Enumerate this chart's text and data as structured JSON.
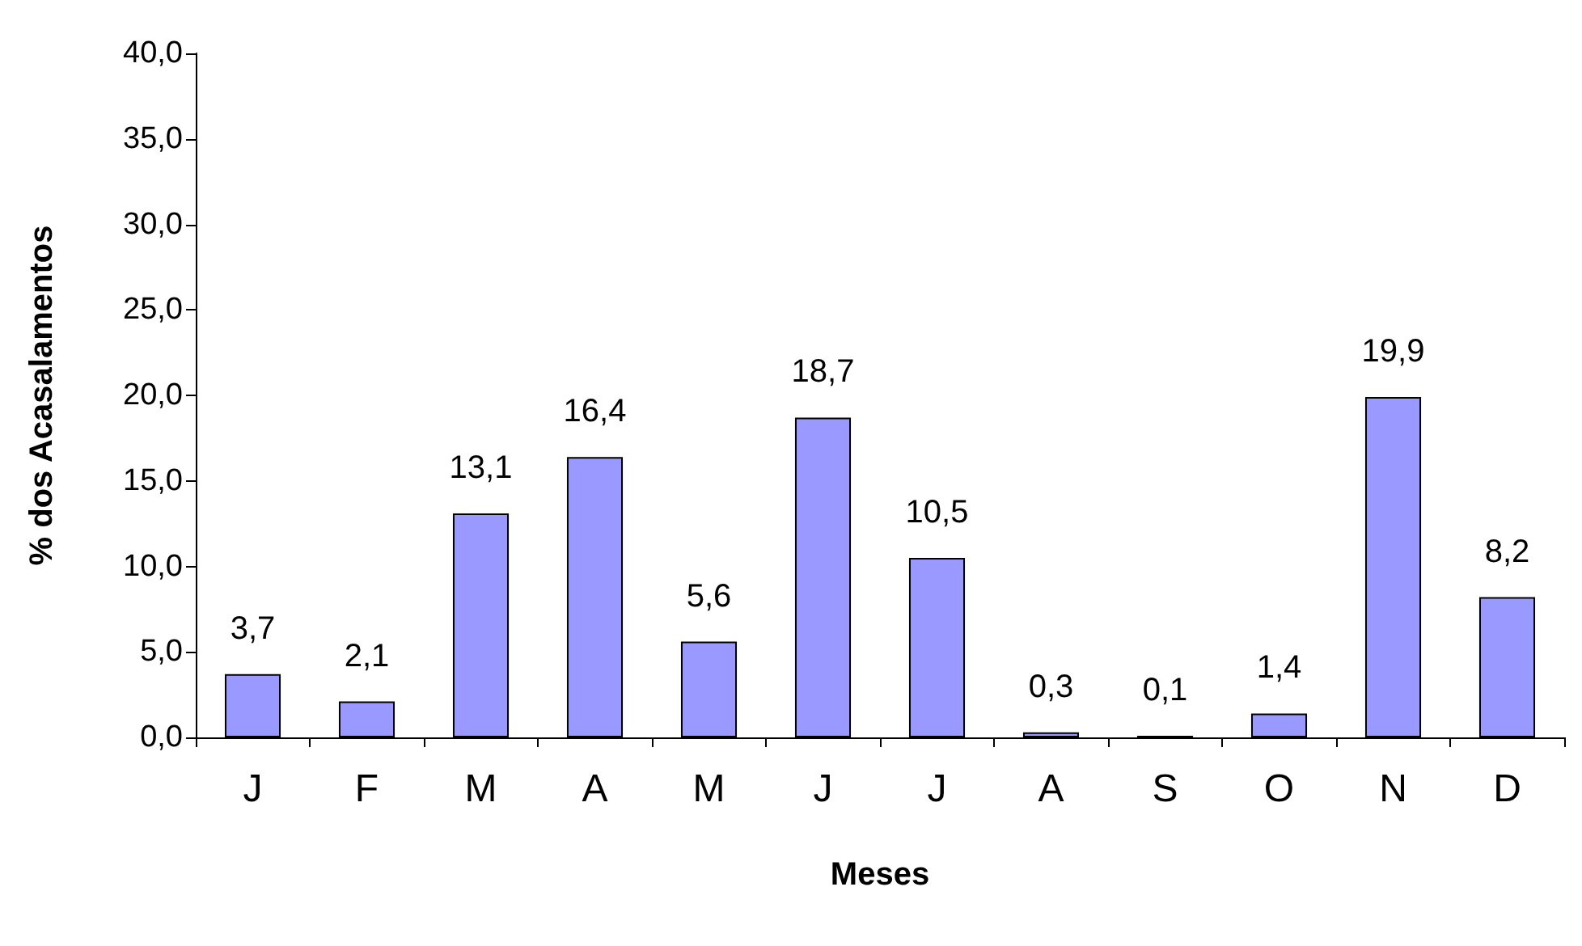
{
  "chart_data": {
    "type": "bar",
    "xlabel": "Meses",
    "ylabel": "% dos Acasalamentos",
    "categories": [
      "J",
      "F",
      "M",
      "A",
      "M",
      "J",
      "J",
      "A",
      "S",
      "O",
      "N",
      "D"
    ],
    "values": [
      3.7,
      2.1,
      13.1,
      16.4,
      5.6,
      18.7,
      10.5,
      0.3,
      0.1,
      1.4,
      19.9,
      8.2
    ],
    "value_labels": [
      "3,7",
      "2,1",
      "13,1",
      "16,4",
      "5,6",
      "18,7",
      "10,5",
      "0,3",
      "0,1",
      "1,4",
      "19,9",
      "8,2"
    ],
    "color": "#9999ff",
    "ylim": [
      0,
      40
    ],
    "yticks": [
      {
        "value": 0,
        "label": "0,0"
      },
      {
        "value": 5,
        "label": "5,0"
      },
      {
        "value": 10,
        "label": "10,0"
      },
      {
        "value": 15,
        "label": "15,0"
      },
      {
        "value": 20,
        "label": "20,0"
      },
      {
        "value": 25,
        "label": "25,0"
      },
      {
        "value": 30,
        "label": "30,0"
      },
      {
        "value": 35,
        "label": "35,0"
      },
      {
        "value": 40,
        "label": "40,0"
      }
    ],
    "grid": false
  }
}
